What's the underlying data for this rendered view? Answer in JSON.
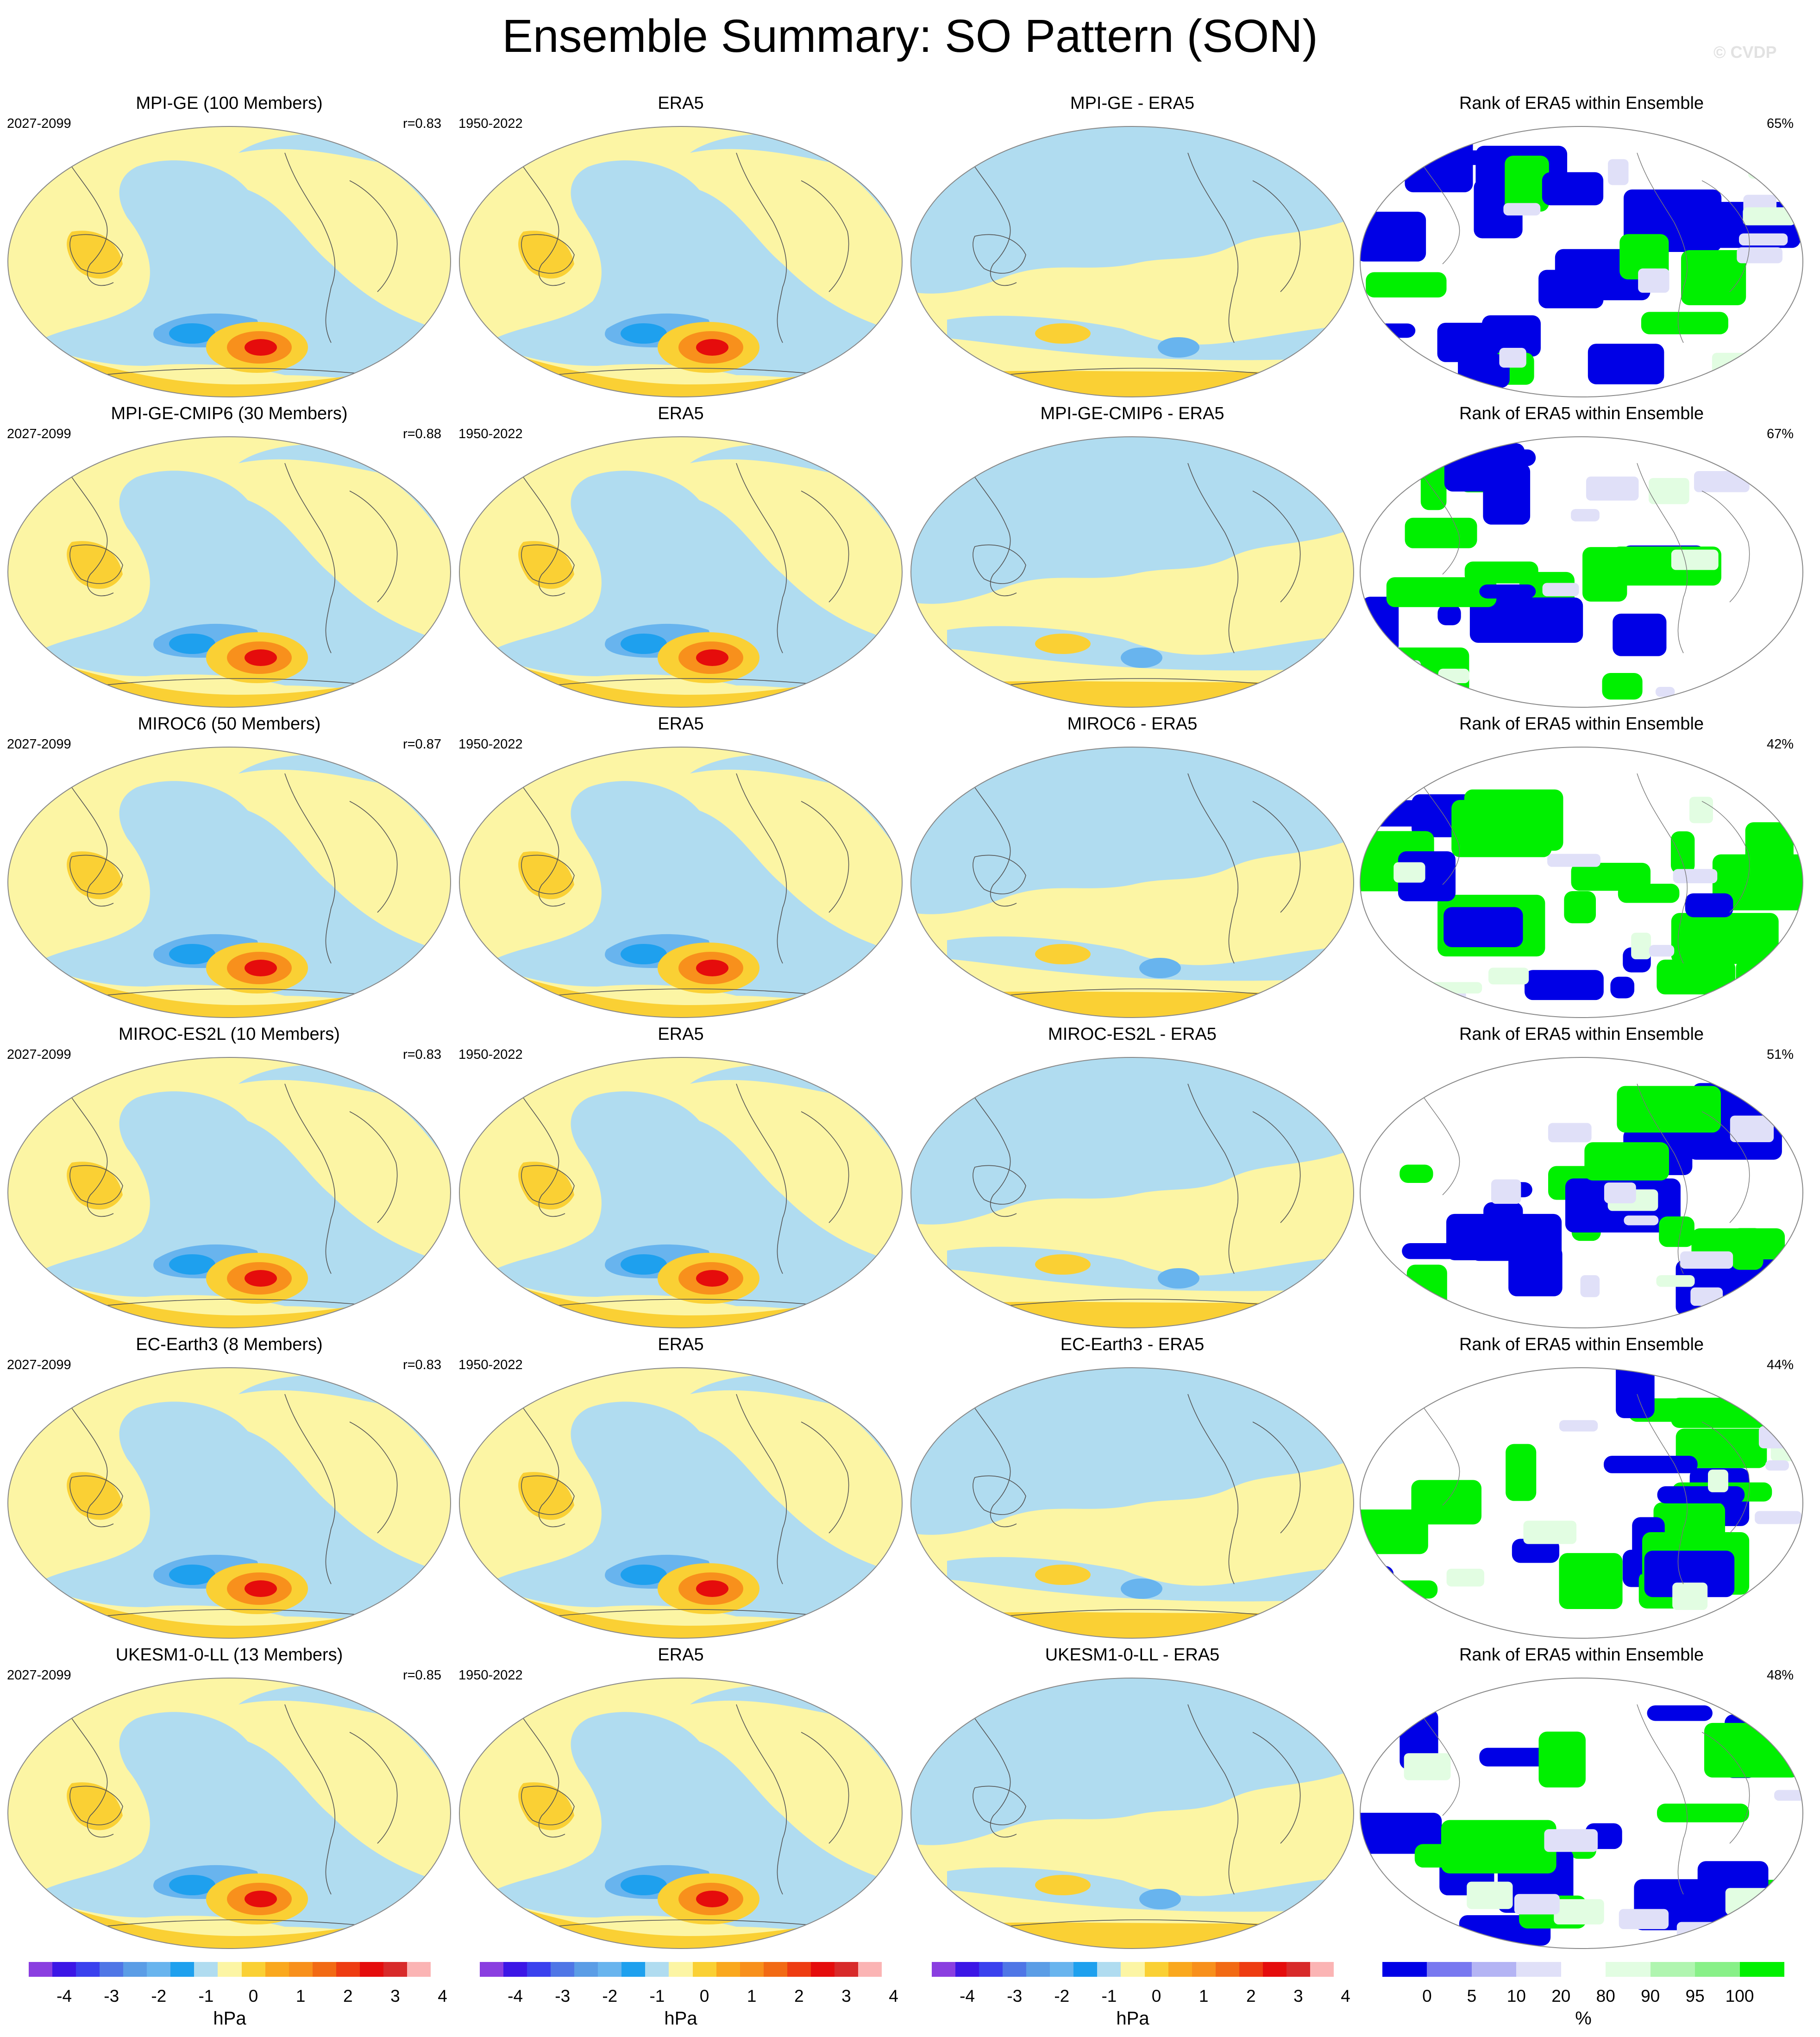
{
  "title": "Ensemble Summary: SO Pattern (SON)",
  "credit": "© CVDP",
  "colors": {
    "diverging": [
      "#8a3ee0",
      "#3c16e6",
      "#3a41ee",
      "#4f76e6",
      "#5b9de6",
      "#68b4ee",
      "#1ea0ee",
      "#b0dcf0",
      "#fcf5a4",
      "#fad034",
      "#faa81e",
      "#f8901c",
      "#f26a14",
      "#ee3c12",
      "#e50c0c",
      "#d82a2a",
      "#fbb4b4"
    ],
    "rank": [
      "#0000e6",
      "#7878f0",
      "#b4b4f4",
      "#e0e0f8",
      "#ffffff",
      "#e2fde2",
      "#b0f5b0",
      "#88f088",
      "#00f000"
    ],
    "map_negative": "#b0dcf0",
    "map_positive": "#fcf5a4",
    "map_neg2": "#68b4ee",
    "map_neg3": "#1ea0ee",
    "map_pos2": "#fad034",
    "map_pos3": "#f8901c",
    "map_pos4": "#e50c0c"
  },
  "chart_data": [
    {
      "type": "heatmap",
      "row": 1,
      "title": "MPI-GE (100 Members)",
      "left_label": "2027-2099",
      "right_label": "r=0.83",
      "units": "hPa"
    },
    {
      "type": "heatmap",
      "row": 1,
      "title": "ERA5",
      "left_label": "1950-2022",
      "right_label": "",
      "units": "hPa"
    },
    {
      "type": "heatmap",
      "row": 1,
      "title": "MPI-GE - ERA5",
      "left_label": "",
      "right_label": "",
      "units": "hPa"
    },
    {
      "type": "heatmap",
      "row": 1,
      "title": "Rank of ERA5 within Ensemble",
      "left_label": "",
      "right_label": "65%",
      "units": "%"
    },
    {
      "type": "heatmap",
      "row": 2,
      "title": "MPI-GE-CMIP6 (30 Members)",
      "left_label": "2027-2099",
      "right_label": "r=0.88",
      "units": "hPa"
    },
    {
      "type": "heatmap",
      "row": 2,
      "title": "ERA5",
      "left_label": "1950-2022",
      "right_label": "",
      "units": "hPa"
    },
    {
      "type": "heatmap",
      "row": 2,
      "title": "MPI-GE-CMIP6 - ERA5",
      "left_label": "",
      "right_label": "",
      "units": "hPa"
    },
    {
      "type": "heatmap",
      "row": 2,
      "title": "Rank of ERA5 within Ensemble",
      "left_label": "",
      "right_label": "67%",
      "units": "%"
    },
    {
      "type": "heatmap",
      "row": 3,
      "title": "MIROC6 (50 Members)",
      "left_label": "2027-2099",
      "right_label": "r=0.87",
      "units": "hPa"
    },
    {
      "type": "heatmap",
      "row": 3,
      "title": "ERA5",
      "left_label": "1950-2022",
      "right_label": "",
      "units": "hPa"
    },
    {
      "type": "heatmap",
      "row": 3,
      "title": "MIROC6 - ERA5",
      "left_label": "",
      "right_label": "",
      "units": "hPa"
    },
    {
      "type": "heatmap",
      "row": 3,
      "title": "Rank of ERA5 within Ensemble",
      "left_label": "",
      "right_label": "42%",
      "units": "%"
    },
    {
      "type": "heatmap",
      "row": 4,
      "title": "MIROC-ES2L (10 Members)",
      "left_label": "2027-2099",
      "right_label": "r=0.83",
      "units": "hPa"
    },
    {
      "type": "heatmap",
      "row": 4,
      "title": "ERA5",
      "left_label": "1950-2022",
      "right_label": "",
      "units": "hPa"
    },
    {
      "type": "heatmap",
      "row": 4,
      "title": "MIROC-ES2L - ERA5",
      "left_label": "",
      "right_label": "",
      "units": "hPa"
    },
    {
      "type": "heatmap",
      "row": 4,
      "title": "Rank of ERA5 within Ensemble",
      "left_label": "",
      "right_label": "51%",
      "units": "%"
    },
    {
      "type": "heatmap",
      "row": 5,
      "title": "EC-Earth3 (8 Members)",
      "left_label": "2027-2099",
      "right_label": "r=0.83",
      "units": "hPa"
    },
    {
      "type": "heatmap",
      "row": 5,
      "title": "ERA5",
      "left_label": "1950-2022",
      "right_label": "",
      "units": "hPa"
    },
    {
      "type": "heatmap",
      "row": 5,
      "title": "EC-Earth3 - ERA5",
      "left_label": "",
      "right_label": "",
      "units": "hPa"
    },
    {
      "type": "heatmap",
      "row": 5,
      "title": "Rank of ERA5 within Ensemble",
      "left_label": "",
      "right_label": "44%",
      "units": "%"
    },
    {
      "type": "heatmap",
      "row": 6,
      "title": "UKESM1-0-LL (13 Members)",
      "left_label": "2027-2099",
      "right_label": "r=0.85",
      "units": "hPa"
    },
    {
      "type": "heatmap",
      "row": 6,
      "title": "ERA5",
      "left_label": "1950-2022",
      "right_label": "",
      "units": "hPa"
    },
    {
      "type": "heatmap",
      "row": 6,
      "title": "UKESM1-0-LL - ERA5",
      "left_label": "",
      "right_label": "",
      "units": "hPa"
    },
    {
      "type": "heatmap",
      "row": 6,
      "title": "Rank of ERA5 within Ensemble",
      "left_label": "",
      "right_label": "48%",
      "units": "%"
    }
  ],
  "colorbars": [
    {
      "units": "hPa",
      "labels": [
        "-4",
        "-3",
        "-2",
        "-1",
        "0",
        "1",
        "2",
        "3",
        "4"
      ],
      "scale": "diverging"
    },
    {
      "units": "hPa",
      "labels": [
        "-4",
        "-3",
        "-2",
        "-1",
        "0",
        "1",
        "2",
        "3",
        "4"
      ],
      "scale": "diverging"
    },
    {
      "units": "hPa",
      "labels": [
        "-4",
        "-3",
        "-2",
        "-1",
        "0",
        "1",
        "2",
        "3",
        "4"
      ],
      "scale": "diverging"
    },
    {
      "units": "%",
      "labels": [
        "0",
        "5",
        "10",
        "20",
        "80",
        "90",
        "95",
        "100"
      ],
      "scale": "rank"
    }
  ]
}
